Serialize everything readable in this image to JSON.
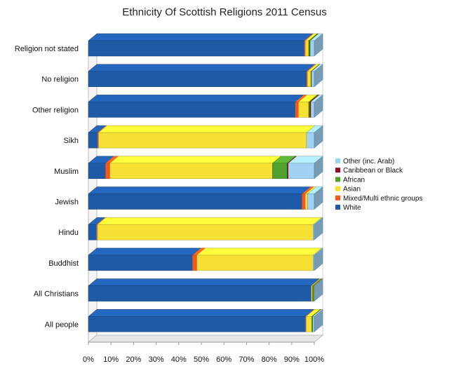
{
  "chart_data": {
    "type": "bar",
    "stacked": true,
    "orientation": "horizontal",
    "title": "Ethnicity Of Scottish Religions 2011 Census",
    "categories": [
      "Religion not stated",
      "No religion",
      "Other religion",
      "Sikh",
      "Muslim",
      "Jewish",
      "Hindu",
      "Buddhist",
      "All Christians",
      "All people"
    ],
    "series": [
      {
        "name": "White",
        "color": "#1f5aa6",
        "values": [
          95.5,
          96.5,
          91.5,
          4,
          7.5,
          94.5,
          3.5,
          46,
          98.5,
          96
        ]
      },
      {
        "name": "Mixed/Multi ethnic groups",
        "color": "#f05a1e",
        "values": [
          0.5,
          0.5,
          1.5,
          0.5,
          2,
          1.5,
          0.5,
          2,
          0.2,
          0.4
        ]
      },
      {
        "name": "Asian",
        "color": "#f7e034",
        "values": [
          1.5,
          1.5,
          4.5,
          92,
          72,
          1,
          95.5,
          51.5,
          0.5,
          2.5
        ]
      },
      {
        "name": "African",
        "color": "#51a12f",
        "values": [
          0.5,
          0.2,
          0.5,
          0,
          6.5,
          0,
          0,
          0,
          0.5,
          0.3
        ]
      },
      {
        "name": "Caribbean or Black",
        "color": "#8c1024",
        "values": [
          0.2,
          0.1,
          0.5,
          0,
          0.5,
          0,
          0,
          0,
          0.1,
          0.1
        ]
      },
      {
        "name": "Other (inc. Arab)",
        "color": "#9ed1f2",
        "values": [
          1.8,
          1.2,
          1.5,
          3.5,
          11.5,
          3,
          0.5,
          0.5,
          0.2,
          0.7
        ]
      }
    ],
    "xlim": [
      0,
      100
    ],
    "xticks": [
      "0%",
      "10%",
      "20%",
      "30%",
      "40%",
      "50%",
      "60%",
      "70%",
      "80%",
      "90%",
      "100%"
    ],
    "legend_position": "right",
    "style": "3d"
  }
}
